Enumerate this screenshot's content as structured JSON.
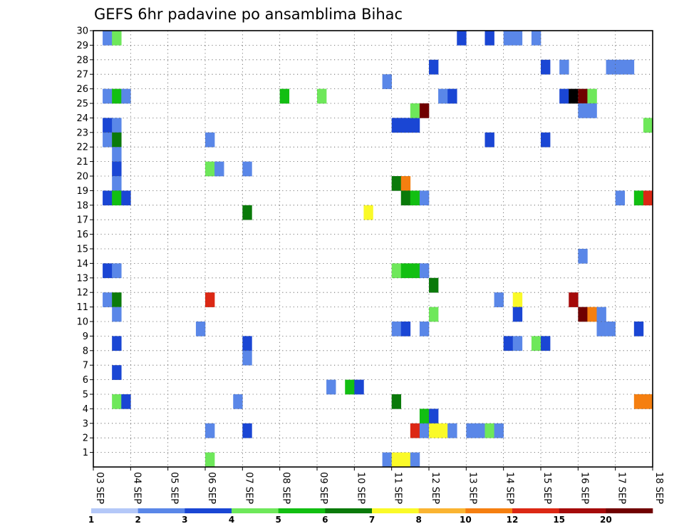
{
  "chart_data": {
    "type": "heatmap",
    "title": "GEFS 6hr padavine po ansamblima Bihac",
    "xlabel": "",
    "ylabel": "",
    "x_ticks": [
      "03 SEP",
      "04 SEP",
      "05 SEP",
      "06 SEP",
      "07 SEP",
      "08 SEP",
      "09 SEP",
      "10 SEP",
      "11 SEP",
      "12 SEP",
      "13 SEP",
      "14 SEP",
      "15 SEP",
      "16 SEP",
      "17 SEP",
      "18 SEP"
    ],
    "y_ticks": [
      "1",
      "2",
      "3",
      "4",
      "5",
      "6",
      "7",
      "8",
      "9",
      "10",
      "11",
      "12",
      "13",
      "14",
      "15",
      "16",
      "17",
      "18",
      "19",
      "20",
      "21",
      "22",
      "23",
      "24",
      "25",
      "26",
      "27",
      "28",
      "29",
      "30"
    ],
    "xlim": [
      0,
      60
    ],
    "ylim": [
      0,
      30
    ],
    "x_step_hours": 6,
    "grid": true,
    "colorbar": {
      "labels": [
        "1",
        "2",
        "3",
        "4",
        "5",
        "6",
        "7",
        "8",
        "10",
        "12",
        "15",
        "20"
      ],
      "colors": [
        "#b4c8f8",
        "#5a87e8",
        "#1a46d4",
        "#6ee85a",
        "#12bf12",
        "#0a7a0a",
        "#fafa28",
        "#fab432",
        "#f57f10",
        "#dc2814",
        "#a50a0a",
        "#700000"
      ]
    },
    "cells": [
      {
        "t": 1,
        "m": 29,
        "v": 1
      },
      {
        "t": 2,
        "m": 29,
        "v": 3
      },
      {
        "t": 1,
        "m": 25,
        "v": 1
      },
      {
        "t": 2,
        "m": 25,
        "v": 4
      },
      {
        "t": 3,
        "m": 25,
        "v": 1
      },
      {
        "t": 1,
        "m": 23,
        "v": 2
      },
      {
        "t": 2,
        "m": 23,
        "v": 1
      },
      {
        "t": 1,
        "m": 22,
        "v": 1
      },
      {
        "t": 2,
        "m": 22,
        "v": 5
      },
      {
        "t": 2,
        "m": 21,
        "v": 1
      },
      {
        "t": 2,
        "m": 20,
        "v": 2
      },
      {
        "t": 2,
        "m": 19,
        "v": 1
      },
      {
        "t": 1,
        "m": 18,
        "v": 2
      },
      {
        "t": 2,
        "m": 18,
        "v": 4
      },
      {
        "t": 3,
        "m": 18,
        "v": 2
      },
      {
        "t": 1,
        "m": 13,
        "v": 2
      },
      {
        "t": 2,
        "m": 13,
        "v": 1
      },
      {
        "t": 1,
        "m": 11,
        "v": 1
      },
      {
        "t": 2,
        "m": 11,
        "v": 5
      },
      {
        "t": 2,
        "m": 10,
        "v": 1
      },
      {
        "t": 2,
        "m": 8,
        "v": 2
      },
      {
        "t": 2,
        "m": 6,
        "v": 2
      },
      {
        "t": 2,
        "m": 4,
        "v": 3
      },
      {
        "t": 3,
        "m": 4,
        "v": 2
      },
      {
        "t": 12,
        "m": 22,
        "v": 1
      },
      {
        "t": 12,
        "m": 20,
        "v": 3
      },
      {
        "t": 13,
        "m": 20,
        "v": 1
      },
      {
        "t": 12,
        "m": 11,
        "v": 9
      },
      {
        "t": 11,
        "m": 9,
        "v": 1
      },
      {
        "t": 12,
        "m": 2,
        "v": 1
      },
      {
        "t": 12,
        "m": 0,
        "v": 3
      },
      {
        "t": 16,
        "m": 20,
        "v": 1
      },
      {
        "t": 16,
        "m": 17,
        "v": 5
      },
      {
        "t": 16,
        "m": 8,
        "v": 2
      },
      {
        "t": 16,
        "m": 7,
        "v": 1
      },
      {
        "t": 15,
        "m": 4,
        "v": 1
      },
      {
        "t": 16,
        "m": 2,
        "v": 2
      },
      {
        "t": 20,
        "m": 25,
        "v": 4
      },
      {
        "t": 24,
        "m": 25,
        "v": 3
      },
      {
        "t": 25,
        "m": 5,
        "v": 1
      },
      {
        "t": 27,
        "m": 5,
        "v": 4
      },
      {
        "t": 28,
        "m": 5,
        "v": 2
      },
      {
        "t": 29,
        "m": 17,
        "v": 6
      },
      {
        "t": 31,
        "m": 26,
        "v": 1
      },
      {
        "t": 31,
        "m": 0,
        "v": 1
      },
      {
        "t": 32,
        "m": 23,
        "v": 2
      },
      {
        "t": 33,
        "m": 23,
        "v": 2
      },
      {
        "t": 34,
        "m": 23,
        "v": 2
      },
      {
        "t": 34,
        "m": 24,
        "v": 3
      },
      {
        "t": 35,
        "m": 24,
        "v": 11
      },
      {
        "t": 32,
        "m": 19,
        "v": 5
      },
      {
        "t": 33,
        "m": 19,
        "v": 8
      },
      {
        "t": 33,
        "m": 18,
        "v": 5
      },
      {
        "t": 34,
        "m": 18,
        "v": 4
      },
      {
        "t": 35,
        "m": 18,
        "v": 1
      },
      {
        "t": 32,
        "m": 13,
        "v": 3
      },
      {
        "t": 33,
        "m": 13,
        "v": 4
      },
      {
        "t": 34,
        "m": 13,
        "v": 4
      },
      {
        "t": 35,
        "m": 13,
        "v": 1
      },
      {
        "t": 32,
        "m": 9,
        "v": 1
      },
      {
        "t": 33,
        "m": 9,
        "v": 2
      },
      {
        "t": 35,
        "m": 9,
        "v": 1
      },
      {
        "t": 32,
        "m": 4,
        "v": 5
      },
      {
        "t": 32,
        "m": 0,
        "v": 6
      },
      {
        "t": 33,
        "m": 0,
        "v": 6
      },
      {
        "t": 34,
        "m": 0,
        "v": 1
      },
      {
        "t": 36,
        "m": 27,
        "v": 2
      },
      {
        "t": 37,
        "m": 25,
        "v": 1
      },
      {
        "t": 38,
        "m": 25,
        "v": 2
      },
      {
        "t": 36,
        "m": 12,
        "v": 5
      },
      {
        "t": 36,
        "m": 10,
        "v": 3
      },
      {
        "t": 35,
        "m": 3,
        "v": 4
      },
      {
        "t": 36,
        "m": 3,
        "v": 2
      },
      {
        "t": 34,
        "m": 2,
        "v": 9
      },
      {
        "t": 35,
        "m": 2,
        "v": 1
      },
      {
        "t": 36,
        "m": 2,
        "v": 6
      },
      {
        "t": 37,
        "m": 2,
        "v": 6
      },
      {
        "t": 38,
        "m": 2,
        "v": 1
      },
      {
        "t": 40,
        "m": 2,
        "v": 1
      },
      {
        "t": 41,
        "m": 2,
        "v": 1
      },
      {
        "t": 42,
        "m": 2,
        "v": 3
      },
      {
        "t": 43,
        "m": 2,
        "v": 1
      },
      {
        "t": 39,
        "m": 29,
        "v": 2
      },
      {
        "t": 42,
        "m": 29,
        "v": 2
      },
      {
        "t": 44,
        "m": 29,
        "v": 1
      },
      {
        "t": 45,
        "m": 29,
        "v": 1
      },
      {
        "t": 47,
        "m": 29,
        "v": 1
      },
      {
        "t": 42,
        "m": 22,
        "v": 2
      },
      {
        "t": 43,
        "m": 11,
        "v": 1
      },
      {
        "t": 45,
        "m": 11,
        "v": 6
      },
      {
        "t": 45,
        "m": 10,
        "v": 2
      },
      {
        "t": 44,
        "m": 8,
        "v": 2
      },
      {
        "t": 45,
        "m": 8,
        "v": 1
      },
      {
        "t": 47,
        "m": 8,
        "v": 3
      },
      {
        "t": 48,
        "m": 8,
        "v": 2
      },
      {
        "t": 48,
        "m": 27,
        "v": 2
      },
      {
        "t": 48,
        "m": 22,
        "v": 2
      },
      {
        "t": 50,
        "m": 27,
        "v": 1
      },
      {
        "t": 50,
        "m": 25,
        "v": 2
      },
      {
        "t": 51,
        "m": 25,
        "v": 12
      },
      {
        "t": 52,
        "m": 25,
        "v": 11
      },
      {
        "t": 53,
        "m": 25,
        "v": 3
      },
      {
        "t": 52,
        "m": 24,
        "v": 1
      },
      {
        "t": 53,
        "m": 24,
        "v": 1
      },
      {
        "t": 52,
        "m": 14,
        "v": 1
      },
      {
        "t": 51,
        "m": 11,
        "v": 10
      },
      {
        "t": 52,
        "m": 10,
        "v": 11
      },
      {
        "t": 53,
        "m": 10,
        "v": 8
      },
      {
        "t": 54,
        "m": 10,
        "v": 1
      },
      {
        "t": 54,
        "m": 9,
        "v": 1
      },
      {
        "t": 55,
        "m": 9,
        "v": 1
      },
      {
        "t": 55,
        "m": 27,
        "v": 1
      },
      {
        "t": 56,
        "m": 27,
        "v": 1
      },
      {
        "t": 57,
        "m": 27,
        "v": 1
      },
      {
        "t": 59,
        "m": 23,
        "v": 3
      },
      {
        "t": 56,
        "m": 18,
        "v": 1
      },
      {
        "t": 58,
        "m": 18,
        "v": 4
      },
      {
        "t": 59,
        "m": 18,
        "v": 9
      },
      {
        "t": 58,
        "m": 9,
        "v": 2
      },
      {
        "t": 58,
        "m": 4,
        "v": 8
      },
      {
        "t": 59,
        "m": 4,
        "v": 8
      }
    ]
  }
}
